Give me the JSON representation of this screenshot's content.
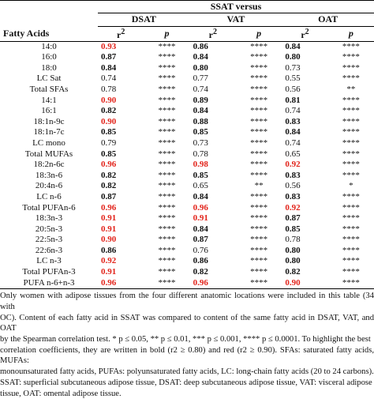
{
  "header": {
    "super": "SSAT versus",
    "groups": [
      "DSAT",
      "VAT",
      "OAT"
    ],
    "row_label": "Fatty Acids",
    "r2": "r",
    "r2_sup": "2",
    "p": "p"
  },
  "rows": [
    {
      "name": "14:0",
      "r": [
        "0.93",
        "0.86",
        "0.84"
      ],
      "p": [
        "****",
        "****",
        "****"
      ]
    },
    {
      "name": "16:0",
      "r": [
        "0.87",
        "0.84",
        "0.80"
      ],
      "p": [
        "****",
        "****",
        "****"
      ]
    },
    {
      "name": "18:0",
      "r": [
        "0.84",
        "0.80",
        "0.73"
      ],
      "p": [
        "****",
        "****",
        "****"
      ]
    },
    {
      "name": "LC Sat",
      "r": [
        "0.74",
        "0.77",
        "0.55"
      ],
      "p": [
        "****",
        "****",
        "****"
      ]
    },
    {
      "name": "Total SFAs",
      "r": [
        "0.78",
        "0.74",
        "0.56"
      ],
      "p": [
        "****",
        "****",
        "**"
      ]
    },
    {
      "name": "14:1",
      "r": [
        "0.90",
        "0.89",
        "0.81"
      ],
      "p": [
        "****",
        "****",
        "****"
      ]
    },
    {
      "name": "16:1",
      "r": [
        "0.82",
        "0.84",
        "0.74"
      ],
      "p": [
        "****",
        "****",
        "****"
      ]
    },
    {
      "name": "18:1n-9c",
      "r": [
        "0.90",
        "0.88",
        "0.83"
      ],
      "p": [
        "****",
        "****",
        "****"
      ]
    },
    {
      "name": "18:1n-7c",
      "r": [
        "0.85",
        "0.85",
        "0.84"
      ],
      "p": [
        "****",
        "****",
        "****"
      ]
    },
    {
      "name": "LC mono",
      "r": [
        "0.79",
        "0.73",
        "0.74"
      ],
      "p": [
        "****",
        "****",
        "****"
      ]
    },
    {
      "name": "Total MUFAs",
      "r": [
        "0.85",
        "0.78",
        "0.65"
      ],
      "p": [
        "****",
        "****",
        "****"
      ]
    },
    {
      "name": "18:2n-6c",
      "r": [
        "0.96",
        "0.98",
        "0.92"
      ],
      "p": [
        "****",
        "****",
        "****"
      ]
    },
    {
      "name": "18:3n-6",
      "r": [
        "0.82",
        "0.85",
        "0.83"
      ],
      "p": [
        "****",
        "****",
        "****"
      ]
    },
    {
      "name": "20:4n-6",
      "r": [
        "0.82",
        "0.65",
        "0.56"
      ],
      "p": [
        "****",
        "**",
        "*"
      ]
    },
    {
      "name": "LC n-6",
      "r": [
        "0.87",
        "0.84",
        "0.83"
      ],
      "p": [
        "****",
        "****",
        "****"
      ]
    },
    {
      "name": "Total PUFAn-6",
      "r": [
        "0.96",
        "0.96",
        "0.92"
      ],
      "p": [
        "****",
        "****",
        "****"
      ]
    },
    {
      "name": "18:3n-3",
      "r": [
        "0.91",
        "0.91",
        "0.87"
      ],
      "p": [
        "****",
        "****",
        "****"
      ]
    },
    {
      "name": "20:5n-3",
      "r": [
        "0.91",
        "0.84",
        "0.85"
      ],
      "p": [
        "****",
        "****",
        "****"
      ]
    },
    {
      "name": "22:5n-3",
      "r": [
        "0.90",
        "0.87",
        "0.78"
      ],
      "p": [
        "****",
        "****",
        "****"
      ]
    },
    {
      "name": "22:6n-3",
      "r": [
        "0.86",
        "0.76",
        "0.80"
      ],
      "p": [
        "****",
        "****",
        "****"
      ]
    },
    {
      "name": "LC n-3",
      "r": [
        "0.92",
        "0.86",
        "0.80"
      ],
      "p": [
        "****",
        "****",
        "****"
      ]
    },
    {
      "name": "Total PUFAn-3",
      "r": [
        "0.91",
        "0.82",
        "0.82"
      ],
      "p": [
        "****",
        "****",
        "****"
      ]
    },
    {
      "name": "PUFA n-6+n-3",
      "r": [
        "0.96",
        "0.96",
        "0.90"
      ],
      "p": [
        "****",
        "****",
        "****"
      ]
    }
  ],
  "styles": {
    "red_color": "#e2231a",
    "emphasis": [
      [
        "red",
        "b",
        "b"
      ],
      [
        "b",
        "b",
        "b"
      ],
      [
        "b",
        "b",
        ""
      ],
      [
        "",
        "",
        ""
      ],
      [
        "",
        "",
        ""
      ],
      [
        "red",
        "b",
        "b"
      ],
      [
        "b",
        "b",
        ""
      ],
      [
        "red",
        "b",
        "b"
      ],
      [
        "b",
        "b",
        "b"
      ],
      [
        "",
        "",
        ""
      ],
      [
        "b",
        "",
        ""
      ],
      [
        "red",
        "red",
        "red"
      ],
      [
        "b",
        "b",
        "b"
      ],
      [
        "b",
        "",
        ""
      ],
      [
        "b",
        "b",
        "b"
      ],
      [
        "red",
        "red",
        "red"
      ],
      [
        "red",
        "red",
        "b"
      ],
      [
        "red",
        "b",
        "b"
      ],
      [
        "red",
        "b",
        ""
      ],
      [
        "b",
        "",
        "b"
      ],
      [
        "red",
        "b",
        "b"
      ],
      [
        "red",
        "b",
        "b"
      ],
      [
        "red",
        "red",
        "red"
      ]
    ]
  },
  "footnote": {
    "lines": [
      "Only women with adipose tissues from the four different anatomic locations were included in this table (34 with",
      "OC). Content of each fatty acid in SSAT was compared to content of the same fatty acid in DSAT, VAT, and OAT",
      "by the Spearman correlation test. * p ≤ 0.05, ** p ≤ 0.01, *** p ≤ 0.001, **** p ≤ 0.0001. To highlight the best",
      "correlation coefficients, they are written in bold (r2 ≥ 0.80) and red (r2 ≥ 0.90). SFAs: saturated fatty acids, MUFAs:",
      "monounsaturated fatty acids, PUFAs: polyunsaturated fatty acids, LC: long-chain fatty acids (20 to 24 carbons).",
      "SSAT: superficial subcutaneous adipose tissue, DSAT: deep subcutaneous adipose tissue, VAT: visceral adipose",
      "tissue, OAT: omental adipose tissue."
    ]
  }
}
